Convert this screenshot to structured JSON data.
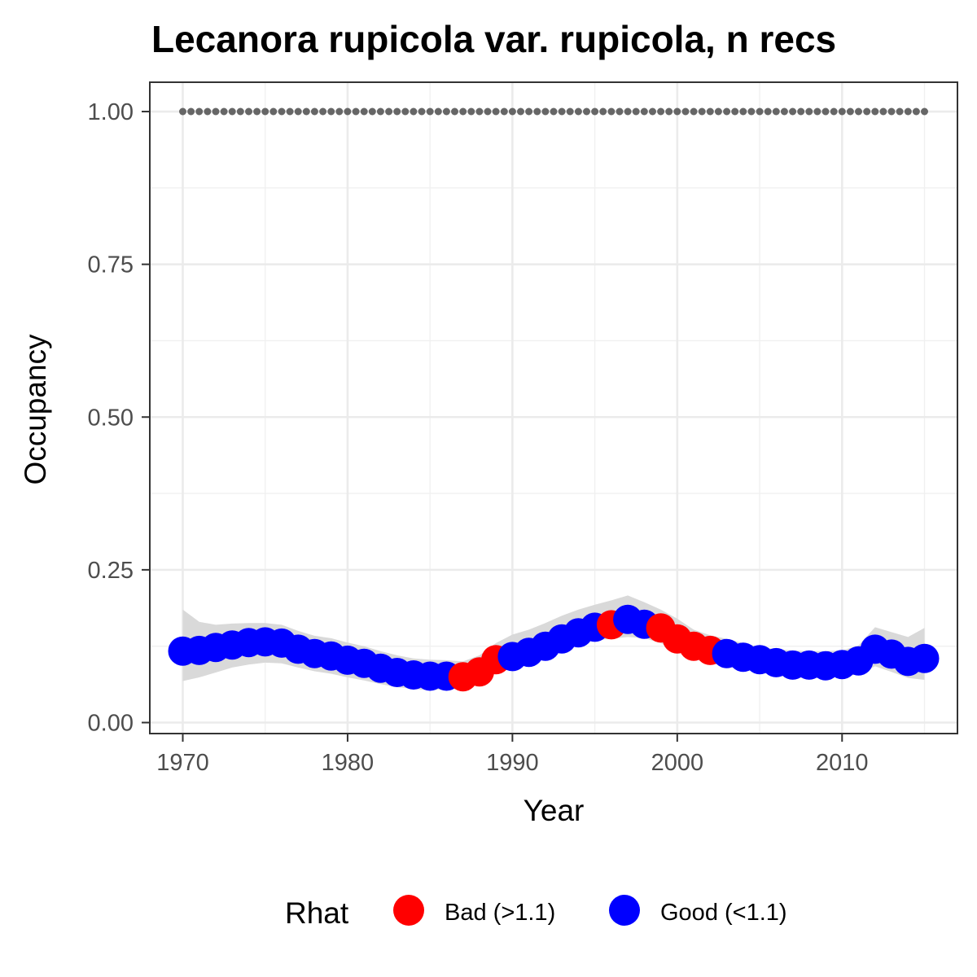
{
  "chart_data": {
    "type": "scatter",
    "title": "Lecanora rupicola var. rupicola, n recs",
    "xlabel": "Year",
    "ylabel": "Occupancy",
    "xlim": [
      1968,
      2017
    ],
    "ylim": [
      -0.018,
      1.048
    ],
    "x_ticks": [
      1970,
      1980,
      1990,
      2000,
      2010
    ],
    "x_tick_labels": [
      "1970",
      "1980",
      "1990",
      "2000",
      "2010"
    ],
    "y_ticks": [
      0,
      0.25,
      0.5,
      0.75,
      1
    ],
    "y_tick_labels": [
      "0.00",
      "0.25",
      "0.50",
      "0.75",
      "1.00"
    ],
    "grid": true,
    "legend": {
      "title": "Rhat",
      "position": "bottom",
      "entries": [
        {
          "label": "Bad (>1.1)",
          "color": "#ff0000"
        },
        {
          "label": "Good (<1.1)",
          "color": "#0000ff"
        }
      ]
    },
    "colors": {
      "bad": "#ff0000",
      "good": "#0000ff",
      "ribbon": "#d9d9d9",
      "reference": "#666666"
    },
    "reference_line": {
      "y": 1.0,
      "style": "dotted"
    },
    "series": [
      {
        "x": [
          1970,
          1971,
          1972,
          1973,
          1974,
          1975,
          1976,
          1977,
          1978,
          1979,
          1980,
          1981,
          1982,
          1983,
          1984,
          1985,
          1986,
          1987,
          1988,
          1989,
          1990,
          1991,
          1992,
          1993,
          1994,
          1995,
          1996,
          1997,
          1998,
          1999,
          2000,
          2001,
          2002,
          2003,
          2004,
          2005,
          2006,
          2007,
          2008,
          2009,
          2010,
          2011,
          2012,
          2013,
          2014,
          2015
        ],
        "y": [
          0.117,
          0.118,
          0.123,
          0.127,
          0.131,
          0.132,
          0.13,
          0.12,
          0.113,
          0.109,
          0.102,
          0.097,
          0.089,
          0.082,
          0.078,
          0.076,
          0.076,
          0.075,
          0.083,
          0.103,
          0.108,
          0.115,
          0.125,
          0.137,
          0.147,
          0.156,
          0.16,
          0.169,
          0.161,
          0.155,
          0.137,
          0.125,
          0.118,
          0.113,
          0.107,
          0.103,
          0.098,
          0.094,
          0.094,
          0.093,
          0.095,
          0.101,
          0.12,
          0.112,
          0.1,
          0.105
        ],
        "lower": [
          0.068,
          0.074,
          0.082,
          0.09,
          0.095,
          0.098,
          0.097,
          0.09,
          0.084,
          0.08,
          0.074,
          0.069,
          0.063,
          0.058,
          0.055,
          0.053,
          0.055,
          0.058,
          0.07,
          0.085,
          0.092,
          0.1,
          0.108,
          0.118,
          0.127,
          0.135,
          0.137,
          0.14,
          0.138,
          0.13,
          0.117,
          0.105,
          0.098,
          0.092,
          0.087,
          0.082,
          0.077,
          0.074,
          0.073,
          0.073,
          0.075,
          0.079,
          0.092,
          0.083,
          0.073,
          0.07
        ],
        "upper": [
          0.185,
          0.165,
          0.16,
          0.162,
          0.163,
          0.163,
          0.16,
          0.15,
          0.142,
          0.138,
          0.131,
          0.125,
          0.117,
          0.11,
          0.105,
          0.103,
          0.102,
          0.1,
          0.11,
          0.13,
          0.144,
          0.152,
          0.163,
          0.175,
          0.185,
          0.193,
          0.2,
          0.208,
          0.197,
          0.185,
          0.17,
          0.152,
          0.143,
          0.137,
          0.13,
          0.124,
          0.12,
          0.118,
          0.117,
          0.117,
          0.118,
          0.126,
          0.156,
          0.148,
          0.14,
          0.155
        ],
        "rhat": [
          "good",
          "good",
          "good",
          "good",
          "good",
          "good",
          "good",
          "good",
          "good",
          "good",
          "good",
          "good",
          "good",
          "good",
          "good",
          "good",
          "good",
          "bad",
          "bad",
          "bad",
          "good",
          "good",
          "good",
          "good",
          "good",
          "good",
          "bad",
          "good",
          "good",
          "bad",
          "bad",
          "bad",
          "bad",
          "good",
          "good",
          "good",
          "good",
          "good",
          "good",
          "good",
          "good",
          "good",
          "good",
          "good",
          "good",
          "good"
        ],
        "reference_y": [
          1,
          1,
          1,
          1,
          1,
          1,
          1,
          1,
          1,
          1,
          1,
          1,
          1,
          1,
          1,
          1,
          1,
          1,
          1,
          1,
          1,
          1,
          1,
          1,
          1,
          1,
          1,
          1,
          1,
          1,
          1,
          1,
          1,
          1,
          1,
          1,
          1,
          1,
          1,
          1,
          1,
          1,
          1,
          1,
          1,
          1
        ]
      }
    ]
  }
}
